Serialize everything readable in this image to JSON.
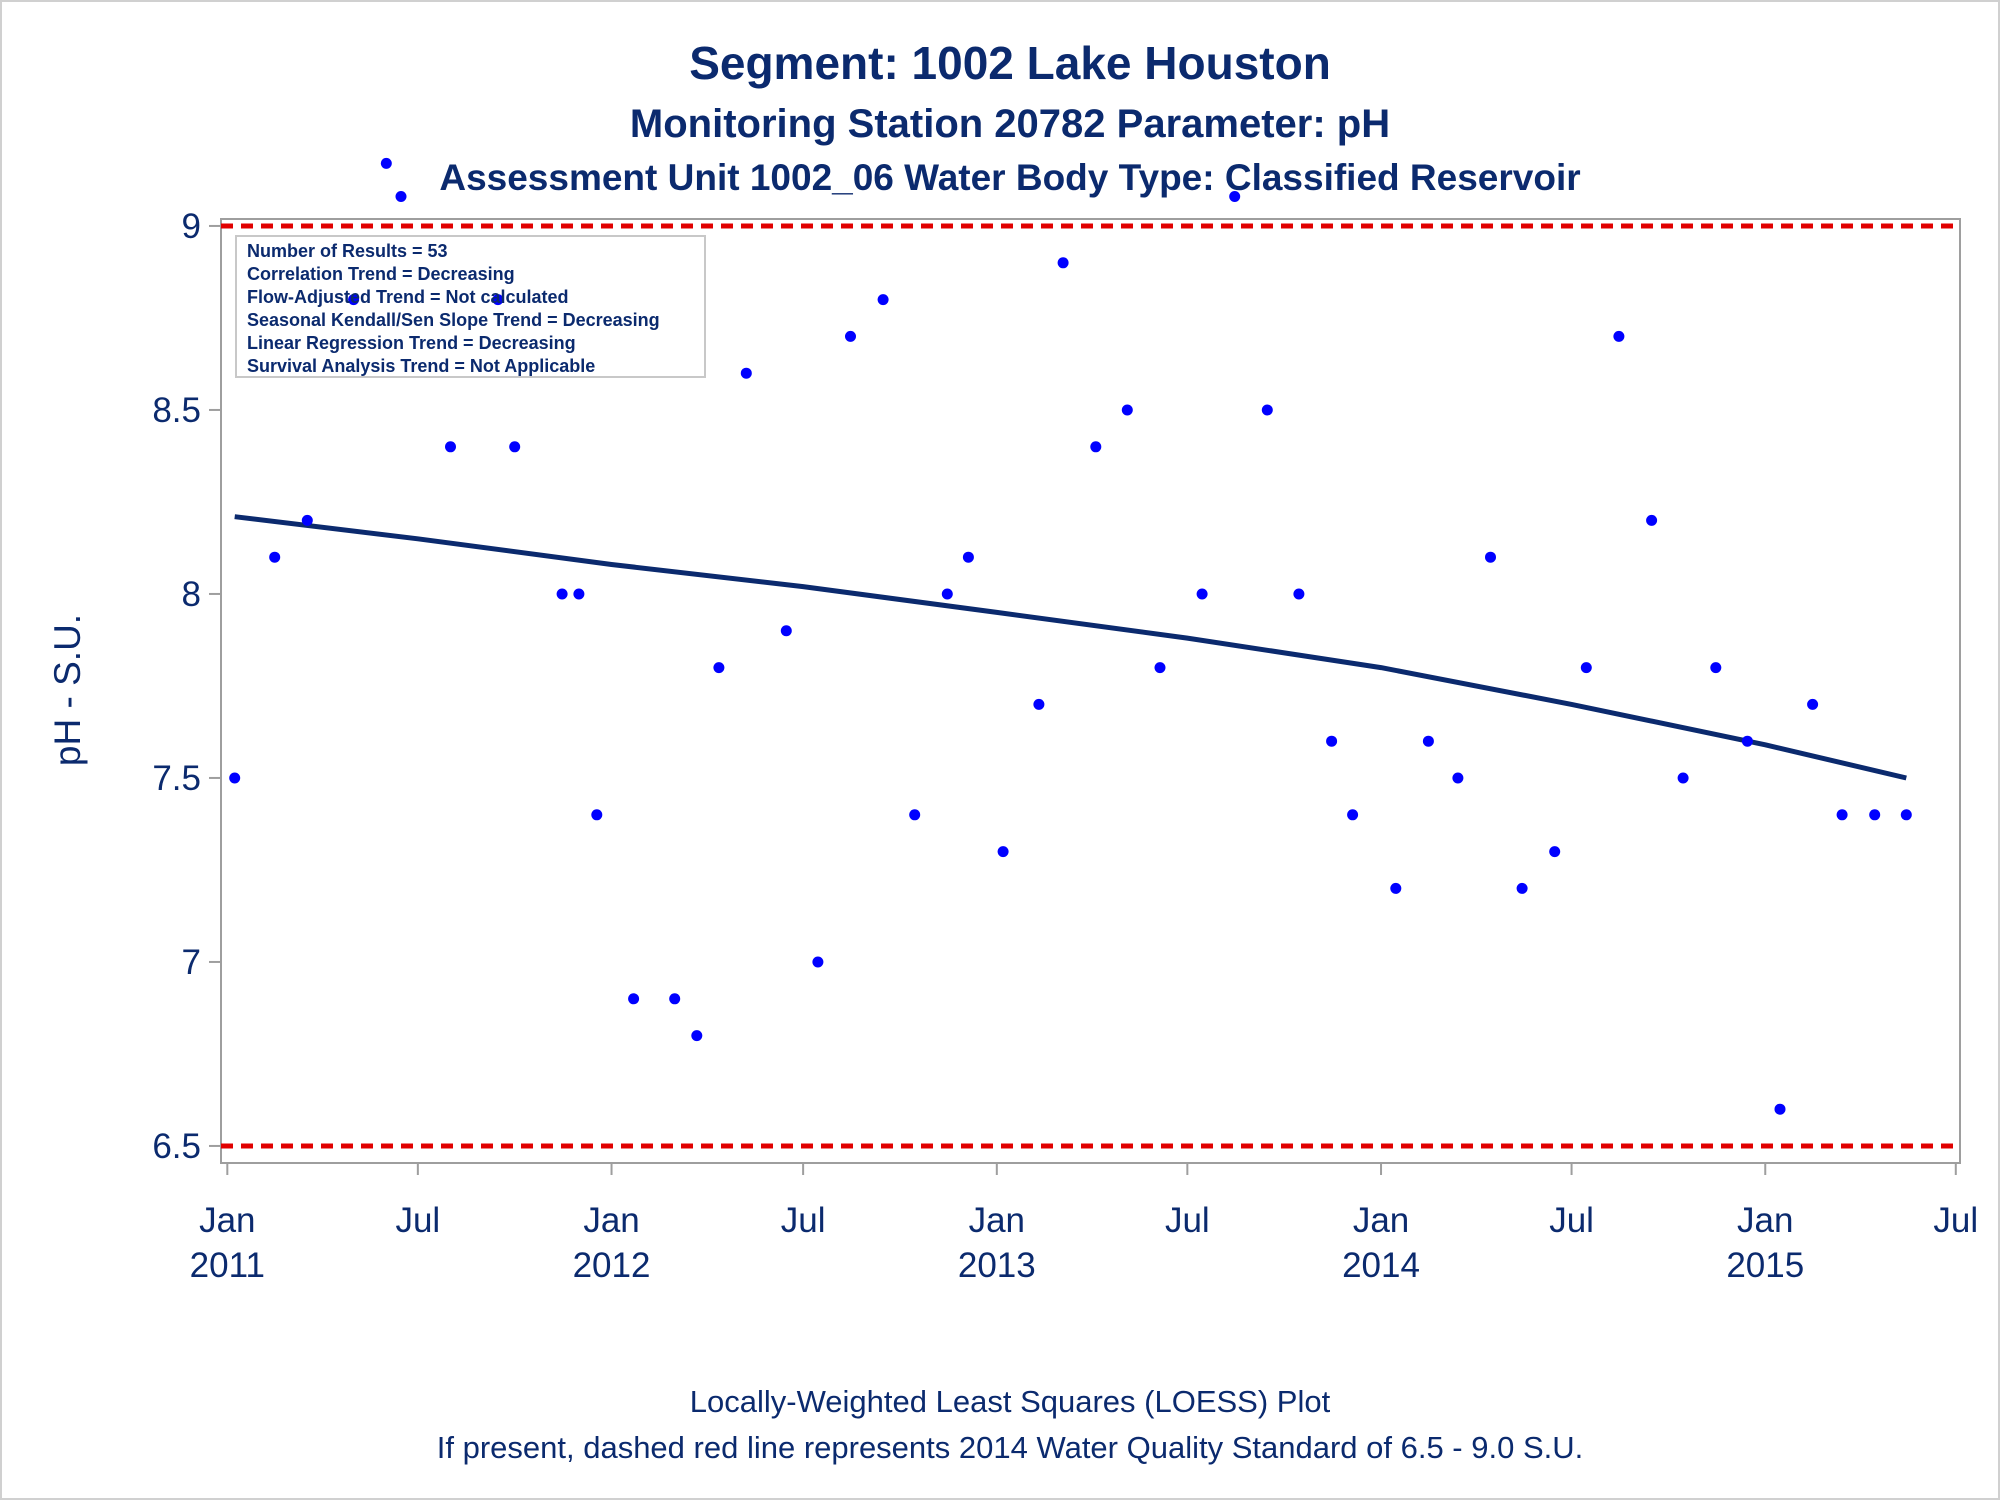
{
  "chart_data": {
    "type": "scatter",
    "title": "Segment: 1002  Lake Houston",
    "subtitle": "Monitoring Station 20782 Parameter: pH",
    "subtitle2": "Assessment Unit 1002_06   Water Body Type: Classified Reservoir",
    "xlabel": "",
    "ylabel": "pH - S.U.",
    "ylim": [
      6.47,
      9.22
    ],
    "xlim": [
      "2010-12-26",
      "2015-07-05"
    ],
    "y_ticks": [
      6.5,
      7,
      7.5,
      8,
      8.5,
      9
    ],
    "y_tick_labels": [
      "6.5",
      "7",
      "7.5",
      "8",
      "8.5",
      "9"
    ],
    "x_ticks": [
      {
        "date": "2011-01-01",
        "month": "Jan",
        "year": "2011"
      },
      {
        "date": "2011-07-01",
        "month": "Jul",
        "year": ""
      },
      {
        "date": "2012-01-01",
        "month": "Jan",
        "year": "2012"
      },
      {
        "date": "2012-07-01",
        "month": "Jul",
        "year": ""
      },
      {
        "date": "2013-01-01",
        "month": "Jan",
        "year": "2013"
      },
      {
        "date": "2013-07-01",
        "month": "Jul",
        "year": ""
      },
      {
        "date": "2014-01-01",
        "month": "Jan",
        "year": "2014"
      },
      {
        "date": "2014-07-01",
        "month": "Jul",
        "year": ""
      },
      {
        "date": "2015-01-01",
        "month": "Jan",
        "year": "2015"
      },
      {
        "date": "2015-07-01",
        "month": "Jul",
        "year": ""
      }
    ],
    "grid": false,
    "series": [
      {
        "type": "scatter",
        "color": "#0000ff",
        "points": [
          {
            "x": "2011-01-08",
            "y": 7.5
          },
          {
            "x": "2011-02-15",
            "y": 8.1
          },
          {
            "x": "2011-03-18",
            "y": 8.2
          },
          {
            "x": "2011-05-01",
            "y": 8.8
          },
          {
            "x": "2011-06-01",
            "y": 9.17
          },
          {
            "x": "2011-06-15",
            "y": 9.08
          },
          {
            "x": "2011-08-01",
            "y": 8.4
          },
          {
            "x": "2011-09-15",
            "y": 8.8
          },
          {
            "x": "2011-10-01",
            "y": 8.4
          },
          {
            "x": "2011-11-15",
            "y": 8.0
          },
          {
            "x": "2011-12-01",
            "y": 8.0
          },
          {
            "x": "2011-12-18",
            "y": 7.4
          },
          {
            "x": "2012-01-22",
            "y": 6.9
          },
          {
            "x": "2012-03-01",
            "y": 6.9
          },
          {
            "x": "2012-03-22",
            "y": 6.8
          },
          {
            "x": "2012-04-12",
            "y": 7.8
          },
          {
            "x": "2012-05-08",
            "y": 8.6
          },
          {
            "x": "2012-06-15",
            "y": 7.9
          },
          {
            "x": "2012-07-15",
            "y": 7.0
          },
          {
            "x": "2012-08-15",
            "y": 8.7
          },
          {
            "x": "2012-09-15",
            "y": 8.8
          },
          {
            "x": "2012-10-15",
            "y": 7.4
          },
          {
            "x": "2012-11-15",
            "y": 8.0
          },
          {
            "x": "2012-12-05",
            "y": 8.1
          },
          {
            "x": "2013-01-07",
            "y": 7.3
          },
          {
            "x": "2013-02-10",
            "y": 7.7
          },
          {
            "x": "2013-03-05",
            "y": 8.9
          },
          {
            "x": "2013-04-05",
            "y": 8.4
          },
          {
            "x": "2013-05-05",
            "y": 8.5
          },
          {
            "x": "2013-06-05",
            "y": 7.8
          },
          {
            "x": "2013-07-15",
            "y": 8.0
          },
          {
            "x": "2013-08-15",
            "y": 9.08
          },
          {
            "x": "2013-09-15",
            "y": 8.5
          },
          {
            "x": "2013-10-15",
            "y": 8.0
          },
          {
            "x": "2013-11-15",
            "y": 7.6
          },
          {
            "x": "2013-12-05",
            "y": 7.4
          },
          {
            "x": "2014-01-15",
            "y": 7.2
          },
          {
            "x": "2014-02-15",
            "y": 7.6
          },
          {
            "x": "2014-03-15",
            "y": 7.5
          },
          {
            "x": "2014-04-15",
            "y": 8.1
          },
          {
            "x": "2014-05-15",
            "y": 7.2
          },
          {
            "x": "2014-06-15",
            "y": 7.3
          },
          {
            "x": "2014-07-15",
            "y": 7.8
          },
          {
            "x": "2014-08-15",
            "y": 8.7
          },
          {
            "x": "2014-09-15",
            "y": 8.2
          },
          {
            "x": "2014-10-15",
            "y": 7.5
          },
          {
            "x": "2014-11-15",
            "y": 7.8
          },
          {
            "x": "2014-12-15",
            "y": 7.6
          },
          {
            "x": "2015-01-15",
            "y": 6.6
          },
          {
            "x": "2015-02-15",
            "y": 7.7
          },
          {
            "x": "2015-03-15",
            "y": 7.4
          },
          {
            "x": "2015-04-15",
            "y": 7.4
          },
          {
            "x": "2015-05-15",
            "y": 7.4
          }
        ]
      },
      {
        "type": "line",
        "color": "#0b2a6e",
        "points": [
          {
            "x": "2011-01-08",
            "y": 8.21
          },
          {
            "x": "2011-07-01",
            "y": 8.15
          },
          {
            "x": "2012-01-01",
            "y": 8.08
          },
          {
            "x": "2012-07-01",
            "y": 8.02
          },
          {
            "x": "2013-01-01",
            "y": 7.95
          },
          {
            "x": "2013-07-01",
            "y": 7.88
          },
          {
            "x": "2014-01-01",
            "y": 7.8
          },
          {
            "x": "2014-07-01",
            "y": 7.7
          },
          {
            "x": "2015-01-01",
            "y": 7.59
          },
          {
            "x": "2015-05-15",
            "y": 7.5
          }
        ]
      }
    ],
    "reference_lines": [
      {
        "y": 9.0,
        "color": "#e00000",
        "style": "dashed"
      },
      {
        "y": 6.5,
        "color": "#e00000",
        "style": "dashed"
      }
    ],
    "legend": {
      "placement": "top-left",
      "lines": [
        "Number of Results = 53",
        "Correlation Trend = Decreasing",
        "Flow-Adjusted Trend = Not calculated",
        "Seasonal Kendall/Sen Slope Trend = Decreasing",
        "Linear Regression Trend = Decreasing",
        "Survival Analysis Trend = Not Applicable"
      ]
    },
    "footnotes": [
      "Locally-Weighted Least Squares (LOESS) Plot",
      "If present, dashed red line represents 2014 Water Quality Standard of 6.5 - 9.0 S.U."
    ]
  }
}
